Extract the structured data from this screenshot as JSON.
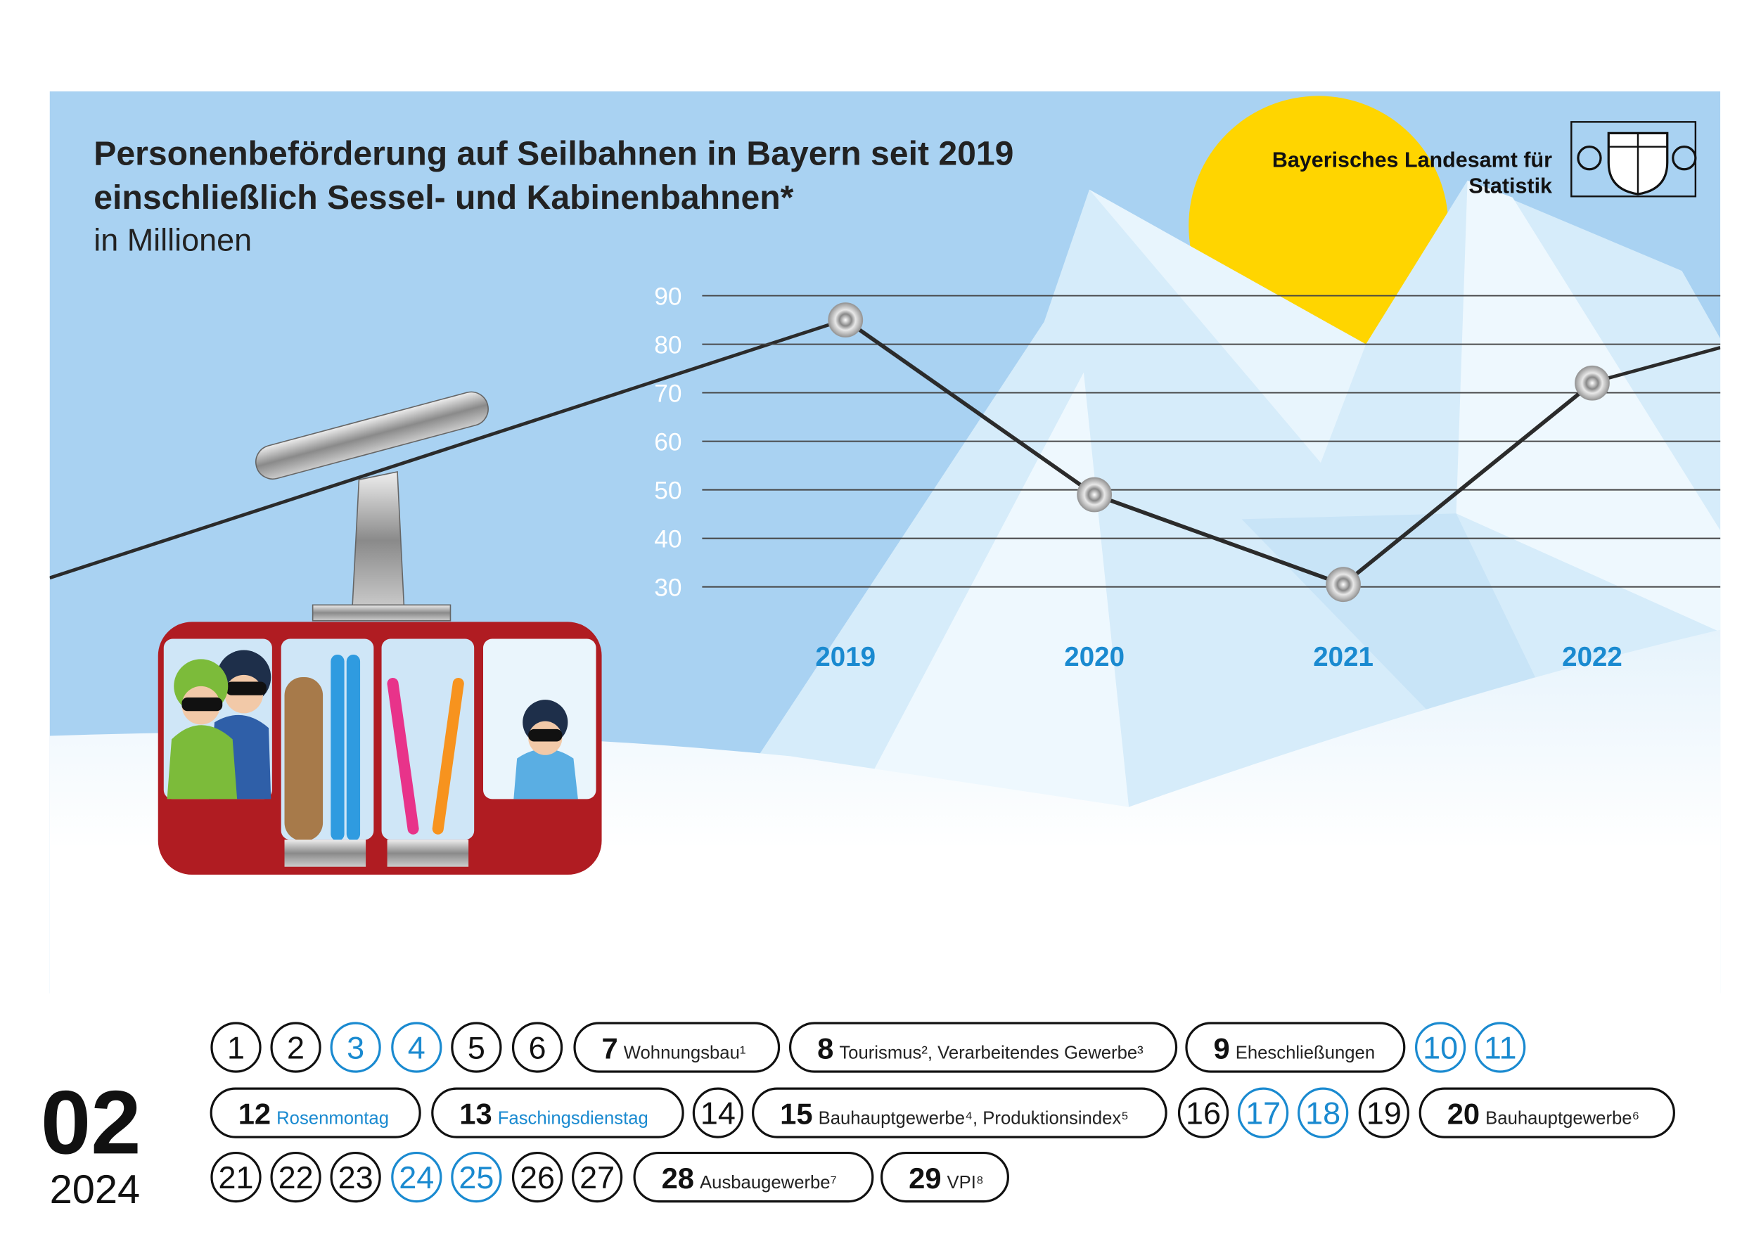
{
  "chart_data": {
    "type": "line",
    "title": "Personenbeförderung auf Seilbahnen in Bayern seit 2019",
    "subtitle": "einschließlich Sessel- und Kabinenbahnen*",
    "ylabel": "in Millionen",
    "categories": [
      "2019",
      "2020",
      "2021",
      "2022"
    ],
    "values": [
      85,
      49,
      30.5,
      72
    ],
    "color": "#2b2b2b",
    "ylim": [
      30,
      90
    ],
    "yticks": [
      30,
      40,
      50,
      60,
      70,
      80,
      90
    ],
    "grid": true
  },
  "logo": {
    "line1": "Bayerisches Landesamt für",
    "line2": "Statistik"
  },
  "calendar": {
    "month": "02",
    "year": "2024",
    "days": [
      {
        "day": 1
      },
      {
        "day": 2
      },
      {
        "day": 3,
        "color": "#1a8ad0"
      },
      {
        "day": 4,
        "color": "#1a8ad0"
      },
      {
        "day": 5
      },
      {
        "day": 6
      },
      {
        "day": 7,
        "label": "Wohnungsbau¹"
      },
      {
        "day": 8,
        "label": "Tourismus², Verarbeitendes Gewerbe³"
      },
      {
        "day": 9,
        "label": "Eheschließungen"
      },
      {
        "day": 10,
        "color": "#1a8ad0"
      },
      {
        "day": 11,
        "color": "#1a8ad0"
      },
      {
        "day": 12,
        "label": "Rosenmontag",
        "label_color": "#1a8ad0"
      },
      {
        "day": 13,
        "label": "Faschingsdienstag",
        "label_color": "#1a8ad0"
      },
      {
        "day": 14
      },
      {
        "day": 15,
        "label": "Bauhauptgewerbe⁴, Produktionsindex⁵"
      },
      {
        "day": 16
      },
      {
        "day": 17,
        "color": "#1a8ad0"
      },
      {
        "day": 18,
        "color": "#1a8ad0"
      },
      {
        "day": 19
      },
      {
        "day": 20,
        "label": "Bauhauptgewerbe⁶"
      },
      {
        "day": 21
      },
      {
        "day": 22
      },
      {
        "day": 23
      },
      {
        "day": 24,
        "color": "#1a8ad0"
      },
      {
        "day": 25,
        "color": "#1a8ad0"
      },
      {
        "day": 26
      },
      {
        "day": 27
      },
      {
        "day": 28,
        "label": "Ausbaugewerbe⁷"
      },
      {
        "day": 29,
        "label": "VPI⁸"
      }
    ]
  }
}
